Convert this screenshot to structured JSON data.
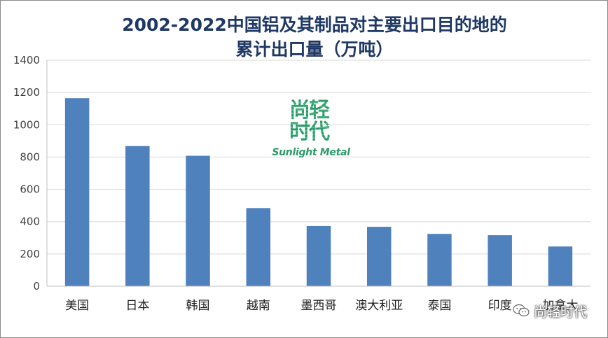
{
  "chart_data": {
    "type": "bar",
    "title": "2002-2022中国铝及其制品对主要出口目的地的累计出口量（万吨）",
    "title_lines": [
      "2002-2022中国铝及其制品对主要出口目的地的",
      "累计出口量（万吨）"
    ],
    "categories": [
      "美国",
      "日本",
      "韩国",
      "越南",
      "墨西哥",
      "澳大利亚",
      "泰国",
      "印度",
      "加拿大"
    ],
    "values": [
      1165,
      868,
      808,
      484,
      373,
      368,
      324,
      316,
      246
    ],
    "ylim": [
      0,
      1400
    ],
    "yticks": [
      0,
      200,
      400,
      600,
      800,
      1000,
      1200,
      1400
    ],
    "grid": true,
    "legend": "none",
    "bar_color": "#4f81bd",
    "gridline_color": "#d9d9d9"
  },
  "watermark": {
    "cn": "尚轻时代",
    "en": "Sunlight Metal",
    "color": "#2e9a6a"
  },
  "source_badge": {
    "text": "尚轻时代",
    "icon": "wechat-icon"
  }
}
